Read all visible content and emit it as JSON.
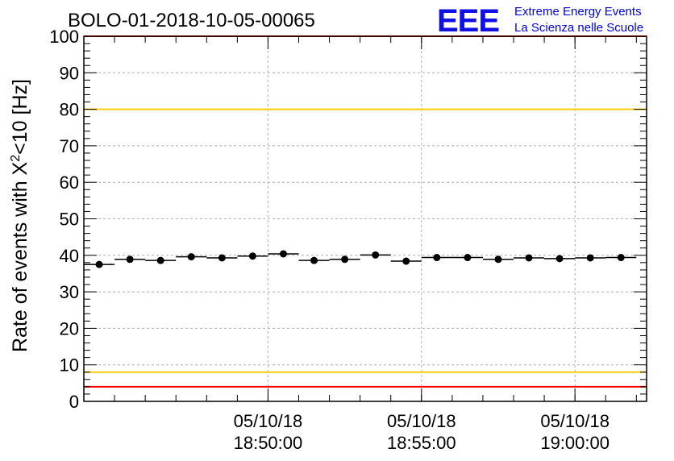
{
  "header": {
    "title": "BOLO-01-2018-10-05-00065"
  },
  "logo": {
    "letters": "EEE",
    "line1": "Extreme Energy Events",
    "line2": "La Scienza nelle Scuole",
    "color": "#1010e6"
  },
  "chart_data": {
    "type": "scatter",
    "title": "BOLO-01-2018-10-05-00065",
    "ylabel_main": "Rate of events with X",
    "ylabel_sup": "2",
    "ylabel_rest": "<10 [Hz]",
    "xlabel": "",
    "ylim": [
      0,
      100
    ],
    "yticks": [
      "0",
      "10",
      "20",
      "30",
      "40",
      "50",
      "60",
      "70",
      "80",
      "90",
      "100"
    ],
    "xlim": [
      "2018-10-05 18:44:00",
      "2018-10-05 19:02:20"
    ],
    "xticks": [
      {
        "time": "2018-10-05 18:50:00",
        "date": "05/10/18",
        "clock": "18:50:00"
      },
      {
        "time": "2018-10-05 18:55:00",
        "date": "05/10/18",
        "clock": "18:55:00"
      },
      {
        "time": "2018-10-05 19:00:00",
        "date": "05/10/18",
        "clock": "19:00:00"
      }
    ],
    "grid": true,
    "series": [
      {
        "x": [
          "2018-10-05 18:44:30",
          "2018-10-05 18:45:30",
          "2018-10-05 18:46:30",
          "2018-10-05 18:47:30",
          "2018-10-05 18:48:30",
          "2018-10-05 18:49:30",
          "2018-10-05 18:50:30",
          "2018-10-05 18:51:30",
          "2018-10-05 18:52:30",
          "2018-10-05 18:53:30",
          "2018-10-05 18:54:30",
          "2018-10-05 18:55:30",
          "2018-10-05 18:56:30",
          "2018-10-05 18:57:30",
          "2018-10-05 18:58:30",
          "2018-10-05 18:59:30",
          "2018-10-05 19:00:30",
          "2018-10-05 19:01:30"
        ],
        "y": [
          37.5,
          38.9,
          38.6,
          39.6,
          39.3,
          39.8,
          40.4,
          38.6,
          38.9,
          40.1,
          38.4,
          39.4,
          39.4,
          38.9,
          39.3,
          39.1,
          39.3,
          39.4
        ]
      }
    ],
    "reference_lines": [
      {
        "y": 100,
        "color": "#ff0000"
      },
      {
        "y": 80,
        "color": "#ffcc00"
      },
      {
        "y": 8,
        "color": "#ffcc00"
      },
      {
        "y": 4,
        "color": "#ff0000"
      }
    ]
  }
}
